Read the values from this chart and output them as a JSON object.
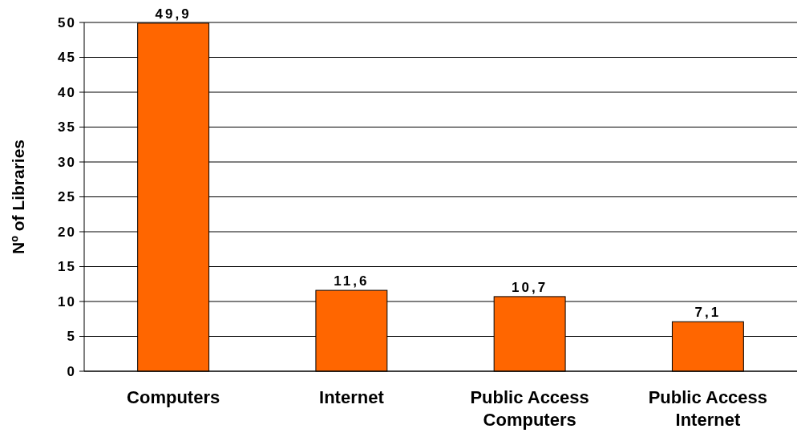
{
  "chart_data": {
    "type": "bar",
    "ylabel": "Nº of Libraries",
    "categories": [
      "Computers",
      "Internet",
      "Public Access Computers",
      "Public Access Internet"
    ],
    "values": [
      49.9,
      11.6,
      10.7,
      7.1
    ],
    "color": "#ff6600",
    "value_labels": [
      "49,9",
      "11,6",
      "10,7",
      "7,1"
    ],
    "ylim": [
      0,
      50
    ],
    "yticks": [
      0,
      5,
      10,
      15,
      20,
      25,
      30,
      35,
      40,
      45,
      50
    ],
    "grid": "y"
  }
}
